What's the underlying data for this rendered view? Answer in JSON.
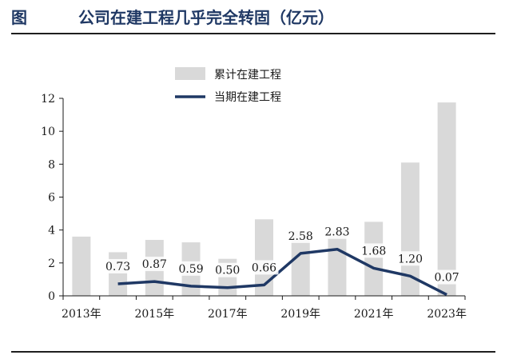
{
  "header": {
    "label": "图",
    "title": "公司在建工程几乎完全转固（亿元）"
  },
  "colors": {
    "bar": "#d9d9d9",
    "line": "#1f3864",
    "axis": "#1a1a1a"
  },
  "chart_data": {
    "type": "bar",
    "title": "公司在建工程几乎完全转固（亿元）",
    "categories": [
      "2013年",
      "2014年",
      "2015年",
      "2016年",
      "2017年",
      "2018年",
      "2019年",
      "2020年",
      "2021年",
      "2022年",
      "2023年"
    ],
    "x_tick_labels": [
      "2013年",
      "2015年",
      "2017年",
      "2019年",
      "2021年",
      "2023年"
    ],
    "ylim": [
      0,
      12
    ],
    "yticks": [
      "0",
      "2",
      "4",
      "6",
      "8",
      "10",
      "12"
    ],
    "legend_position": "top-center",
    "series": [
      {
        "name": "累计在建工程",
        "type": "bar",
        "values": [
          3.6,
          2.65,
          3.4,
          3.25,
          2.25,
          4.65,
          3.95,
          3.95,
          4.5,
          8.1,
          11.75
        ]
      },
      {
        "name": "当期在建工程",
        "type": "line",
        "values": [
          null,
          0.73,
          0.87,
          0.59,
          0.5,
          0.66,
          2.58,
          2.83,
          1.68,
          1.2,
          0.07
        ],
        "data_labels": [
          "",
          "0.73",
          "0.87",
          "0.59",
          "0.50",
          "0.66",
          "2.58",
          "2.83",
          "1.68",
          "1.20",
          "0.07"
        ]
      }
    ]
  }
}
